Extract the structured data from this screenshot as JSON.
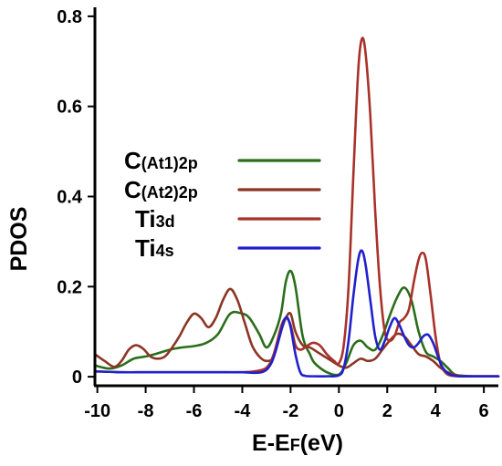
{
  "chart_data": {
    "type": "line",
    "xlabel": {
      "main": "E-E",
      "sub": "F",
      "unit": "(eV)"
    },
    "ylabel": "PDOS",
    "xlim": [
      -10.1,
      6.6
    ],
    "ylim": [
      -0.02,
      0.82
    ],
    "xticks": [
      -10,
      -8,
      -6,
      -4,
      -2,
      0,
      2,
      4,
      6
    ],
    "xtick_labels": [
      "-10",
      "-8",
      "-6",
      "-4",
      "-2",
      "0",
      "2",
      "4",
      "6"
    ],
    "yticks": [
      0,
      0.2,
      0.4,
      0.6,
      0.8
    ],
    "ytick_labels": [
      "0",
      "0.2",
      "0.4",
      "0.6",
      "0.8"
    ],
    "grid": false,
    "legend_position": "center",
    "series": [
      {
        "name": "C(At1)2p",
        "legend": {
          "main": "C",
          "sub": "(At1)2p"
        },
        "color": "#2a6e1a",
        "x": [
          -10.1,
          -9.5,
          -9,
          -8.5,
          -8,
          -7.5,
          -7,
          -6.5,
          -6,
          -5.5,
          -5,
          -4.5,
          -4,
          -3.7,
          -3.3,
          -3,
          -2.7,
          -2.4,
          -2.2,
          -2,
          -1.8,
          -1.5,
          -1.2,
          -1,
          -0.5,
          0,
          0.3,
          0.6,
          0.9,
          1.2,
          1.5,
          1.8,
          2.1,
          2.4,
          2.7,
          3,
          3.3,
          3.6,
          3.9,
          4.2,
          4.5,
          4.8,
          5.2,
          5.6,
          6,
          6.6
        ],
        "y": [
          0.025,
          0.018,
          0.025,
          0.04,
          0.045,
          0.052,
          0.06,
          0.065,
          0.068,
          0.075,
          0.095,
          0.14,
          0.14,
          0.13,
          0.095,
          0.065,
          0.09,
          0.14,
          0.21,
          0.235,
          0.2,
          0.09,
          0.05,
          0.03,
          0.01,
          0.005,
          0.03,
          0.07,
          0.08,
          0.065,
          0.06,
          0.09,
          0.135,
          0.175,
          0.198,
          0.17,
          0.1,
          0.055,
          0.045,
          0.035,
          0.02,
          0.005,
          0.002,
          0.001,
          0.001,
          0.001
        ]
      },
      {
        "name": "C(At2)2p",
        "legend": {
          "main": "C",
          "sub": "(At2)2p"
        },
        "color": "#8b3525",
        "x": [
          -10.1,
          -9.7,
          -9.3,
          -9,
          -8.7,
          -8.4,
          -8.1,
          -7.8,
          -7.5,
          -7.2,
          -6.9,
          -6.6,
          -6.3,
          -6,
          -5.7,
          -5.4,
          -5.1,
          -4.8,
          -4.5,
          -4.2,
          -3.9,
          -3.6,
          -3.3,
          -3,
          -2.7,
          -2.4,
          -2.2,
          -2,
          -1.8,
          -1.5,
          -1.2,
          -0.9,
          -0.6,
          -0.3,
          0,
          0.3,
          0.6,
          0.9,
          1.2,
          1.5,
          1.8,
          2.1,
          2.4,
          2.7,
          3,
          3.3,
          3.6,
          3.9,
          4.2,
          4.5,
          5,
          5.5,
          6.6
        ],
        "y": [
          0.05,
          0.035,
          0.022,
          0.035,
          0.06,
          0.07,
          0.062,
          0.045,
          0.04,
          0.045,
          0.065,
          0.09,
          0.12,
          0.14,
          0.13,
          0.11,
          0.13,
          0.17,
          0.195,
          0.17,
          0.12,
          0.07,
          0.045,
          0.035,
          0.045,
          0.1,
          0.13,
          0.14,
          0.1,
          0.07,
          0.065,
          0.055,
          0.045,
          0.035,
          0.025,
          0.02,
          0.03,
          0.04,
          0.035,
          0.04,
          0.06,
          0.08,
          0.095,
          0.09,
          0.07,
          0.05,
          0.045,
          0.035,
          0.02,
          0.01,
          0.002,
          0.001,
          0.001
        ]
      },
      {
        "name": "Ti3d",
        "legend": {
          "main": "Ti",
          "sub": "3d"
        },
        "color": "#a8322a",
        "x": [
          -10.1,
          -9,
          -8,
          -7,
          -6,
          -5,
          -4,
          -3.5,
          -3,
          -2.7,
          -2.4,
          -2.2,
          -2,
          -1.8,
          -1.6,
          -1.4,
          -1.1,
          -0.8,
          -0.5,
          -0.2,
          0,
          0.2,
          0.4,
          0.6,
          0.8,
          0.95,
          1.1,
          1.3,
          1.5,
          1.7,
          1.9,
          2.1,
          2.3,
          2.5,
          2.7,
          2.9,
          3.1,
          3.3,
          3.45,
          3.6,
          3.8,
          4,
          4.2,
          4.4,
          4.6,
          5,
          5.5,
          6.6
        ],
        "y": [
          0.012,
          0.01,
          0.01,
          0.01,
          0.01,
          0.01,
          0.01,
          0.012,
          0.02,
          0.05,
          0.11,
          0.13,
          0.115,
          0.07,
          0.06,
          0.065,
          0.075,
          0.07,
          0.05,
          0.035,
          0.03,
          0.07,
          0.2,
          0.45,
          0.68,
          0.75,
          0.72,
          0.58,
          0.37,
          0.2,
          0.1,
          0.08,
          0.09,
          0.12,
          0.13,
          0.15,
          0.21,
          0.26,
          0.275,
          0.26,
          0.18,
          0.09,
          0.03,
          0.01,
          0.003,
          0.001,
          0.001,
          0.001
        ]
      },
      {
        "name": "Ti4s",
        "legend": {
          "main": "Ti",
          "sub": "4s"
        },
        "color": "#2020cc",
        "x": [
          -10.1,
          -9,
          -8,
          -7,
          -6,
          -5,
          -4,
          -3.2,
          -2.8,
          -2.5,
          -2.3,
          -2.15,
          -2,
          -1.8,
          -1.6,
          -1.4,
          -1,
          -0.5,
          0,
          0.2,
          0.4,
          0.6,
          0.8,
          0.95,
          1.1,
          1.3,
          1.5,
          1.7,
          1.9,
          2.1,
          2.3,
          2.5,
          2.7,
          2.9,
          3.1,
          3.3,
          3.5,
          3.7,
          3.9,
          4.1,
          4.3,
          4.6,
          5,
          5.5,
          6.6
        ],
        "y": [
          0.012,
          0.01,
          0.01,
          0.01,
          0.01,
          0.01,
          0.01,
          0.01,
          0.03,
          0.08,
          0.12,
          0.132,
          0.11,
          0.05,
          0.01,
          0.002,
          0.001,
          0.001,
          0.003,
          0.02,
          0.08,
          0.18,
          0.26,
          0.28,
          0.25,
          0.17,
          0.09,
          0.06,
          0.08,
          0.11,
          0.13,
          0.115,
          0.09,
          0.07,
          0.065,
          0.075,
          0.09,
          0.093,
          0.075,
          0.045,
          0.02,
          0.005,
          0.001,
          0.001,
          0.001
        ]
      }
    ]
  }
}
